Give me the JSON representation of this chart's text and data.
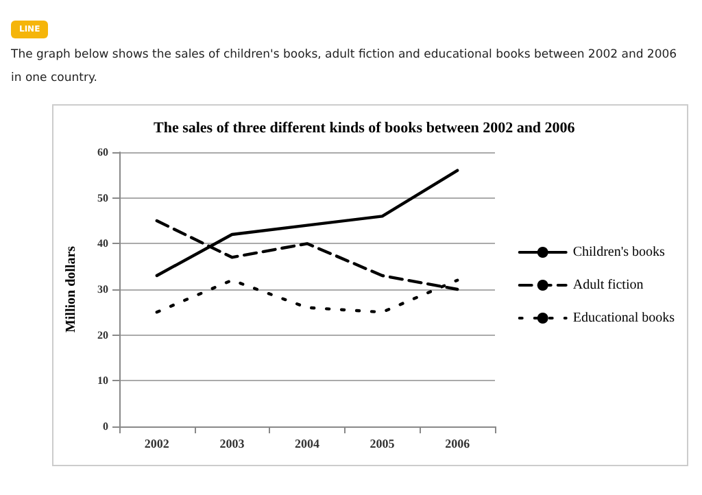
{
  "chart_data": {
    "type": "line",
    "title": "The sales of three different kinds of books between 2002 and 2006",
    "subtitle": "The graph below shows the sales of children's books, adult fiction and educational books between 2002 and 2006 in one country.",
    "annotations": [
      "LINE"
    ],
    "ylabel": "Million dollars",
    "categories": [
      "2002",
      "2003",
      "2004",
      "2005",
      "2006"
    ],
    "series": [
      {
        "name": "Children's books",
        "color": "#000000",
        "line_style": "solid",
        "values": [
          33,
          42,
          44,
          46,
          56
        ]
      },
      {
        "name": "Adult fiction",
        "color": "#000000",
        "line_style": "dashed",
        "values": [
          45,
          37,
          40,
          33,
          30
        ]
      },
      {
        "name": "Educational books",
        "color": "#000000",
        "line_style": "dotted",
        "values": [
          25,
          32,
          26,
          25,
          32
        ]
      }
    ],
    "ylim": [
      0,
      60
    ],
    "yticks": [
      0,
      10,
      20,
      30,
      40,
      50,
      60
    ],
    "grid": "y",
    "legend": "right",
    "marker": "none"
  }
}
